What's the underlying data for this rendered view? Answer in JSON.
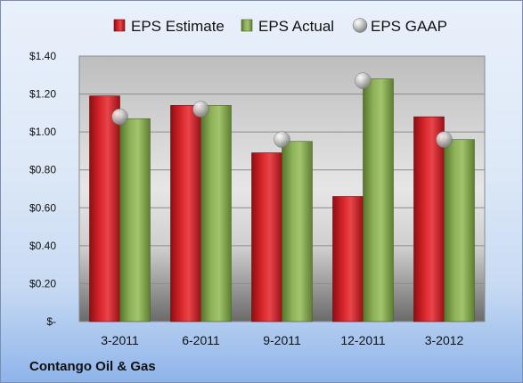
{
  "company": "Contango Oil & Gas",
  "chart_data": {
    "type": "bar",
    "categories": [
      "3-2011",
      "6-2011",
      "9-2011",
      "12-2011",
      "3-2012"
    ],
    "series": [
      {
        "name": "EPS Estimate",
        "kind": "bar",
        "color": "#c0161d",
        "values": [
          1.19,
          1.14,
          0.89,
          0.66,
          1.08
        ]
      },
      {
        "name": "EPS Actual",
        "kind": "bar",
        "color": "#7ea04a",
        "values": [
          1.07,
          1.14,
          0.95,
          1.28,
          0.96
        ]
      },
      {
        "name": "EPS GAAP",
        "kind": "marker",
        "color": "#a9a9a9",
        "values": [
          1.08,
          1.12,
          0.96,
          1.27,
          0.96
        ]
      }
    ],
    "yticks": [
      "$-",
      "$0.20",
      "$0.40",
      "$0.60",
      "$0.80",
      "$1.00",
      "$1.20",
      "$1.40"
    ],
    "ylim": [
      0,
      1.4
    ],
    "grid": true,
    "legend_position": "top"
  }
}
